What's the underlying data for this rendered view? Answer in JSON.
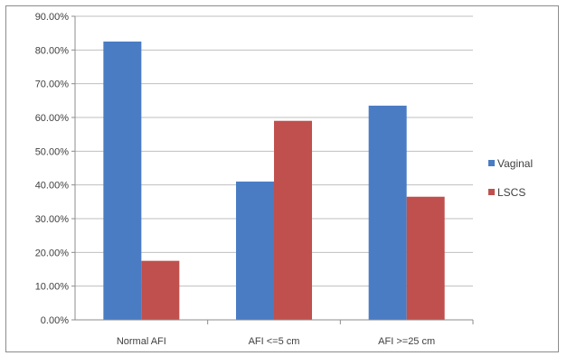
{
  "chart_data": {
    "type": "bar",
    "categories": [
      "Normal AFI",
      "AFI <=5 cm",
      "AFI >=25 cm"
    ],
    "series": [
      {
        "name": "Vaginal",
        "color": "#4a7cc4",
        "values": [
          82.5,
          41.0,
          63.5
        ]
      },
      {
        "name": "LSCS",
        "color": "#c0504d",
        "values": [
          17.5,
          59.0,
          36.5
        ]
      }
    ],
    "y_ticks": [
      "0.00%",
      "10.00%",
      "20.00%",
      "30.00%",
      "40.00%",
      "50.00%",
      "60.00%",
      "70.00%",
      "80.00%",
      "90.00%"
    ],
    "ylim": [
      0,
      90
    ],
    "title": "",
    "xlabel": "",
    "ylabel": "",
    "grid": true,
    "legend_position": "right"
  }
}
